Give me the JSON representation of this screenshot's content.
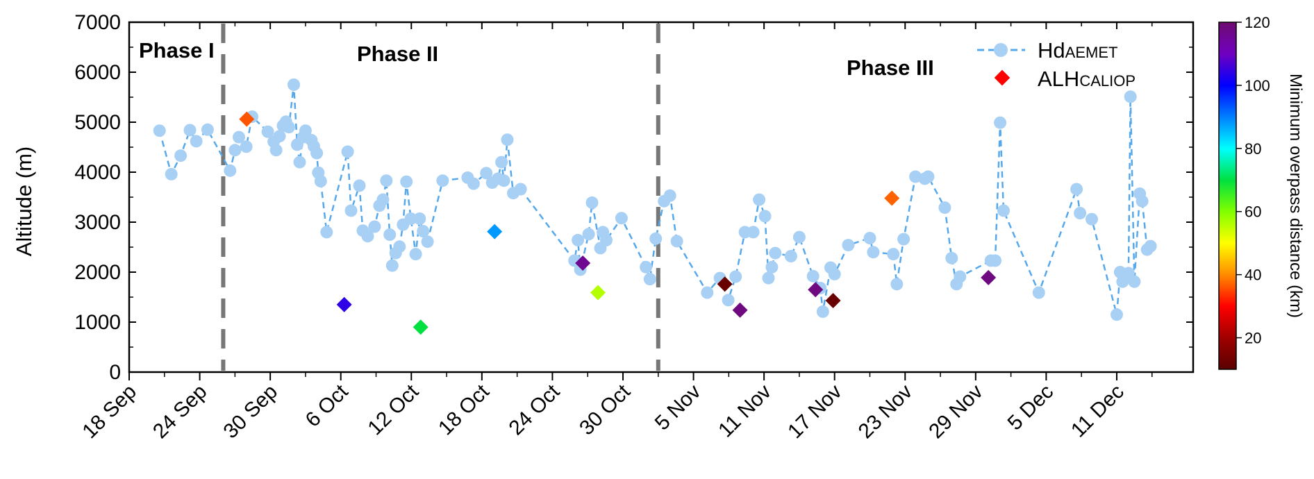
{
  "chart_data": {
    "type": "scatter",
    "ylabel": "Altitude (m)",
    "ylim": [
      0,
      7000
    ],
    "yticks": [
      0,
      1000,
      2000,
      3000,
      4000,
      5000,
      6000,
      7000
    ],
    "xlim_days_from_sep18": [
      0,
      90.5
    ],
    "xtick_labels": [
      "18 Sep",
      "24 Sep",
      "30 Sep",
      "6 Oct",
      "12 Oct",
      "18 Oct",
      "24 Oct",
      "30 Oct",
      "5 Nov",
      "11 Nov",
      "17 Nov",
      "23 Nov",
      "29 Nov",
      "5 Dec",
      "11 Dec"
    ],
    "phases": [
      {
        "label": "Phase I"
      },
      {
        "label": "Phase II"
      },
      {
        "label": "Phase III"
      }
    ],
    "phase_boundaries": [
      "2022-09-26",
      "2022-11-02"
    ],
    "colors": {
      "hd_series": "#a8d0f5",
      "hd_line": "#56a8ec",
      "boundary": "#777777"
    },
    "series": [
      {
        "name": "Hd",
        "name_sub": "AEMET",
        "marker": "circle",
        "points": [
          [
            "2022-09-20T14:00",
            4830
          ],
          [
            "2022-09-21T14:00",
            3960
          ],
          [
            "2022-09-22T09:00",
            4330
          ],
          [
            "2022-09-23T04:00",
            4840
          ],
          [
            "2022-09-23T17:00",
            4620
          ],
          [
            "2022-09-24T16:00",
            4850
          ],
          [
            "2022-09-26T14:00",
            4030
          ],
          [
            "2022-09-27T00:00",
            4440
          ],
          [
            "2022-09-27T08:00",
            4700
          ],
          [
            "2022-09-27T23:00",
            4510
          ],
          [
            "2022-09-28T11:00",
            5110
          ],
          [
            "2022-09-29T19:00",
            4810
          ],
          [
            "2022-09-30T07:00",
            4610
          ],
          [
            "2022-09-30T12:00",
            4440
          ],
          [
            "2022-09-30T19:00",
            4720
          ],
          [
            "2022-10-01T02:00",
            4930
          ],
          [
            "2022-10-01T08:00",
            5010
          ],
          [
            "2022-10-01T14:00",
            4900
          ],
          [
            "2022-10-02T00:00",
            5750
          ],
          [
            "2022-10-02T07:00",
            4550
          ],
          [
            "2022-10-02T12:00",
            4200
          ],
          [
            "2022-10-02T19:00",
            4700
          ],
          [
            "2022-10-03T00:00",
            4830
          ],
          [
            "2022-10-03T12:00",
            4640
          ],
          [
            "2022-10-03T17:00",
            4520
          ],
          [
            "2022-10-03T23:00",
            4380
          ],
          [
            "2022-10-04T02:00",
            3990
          ],
          [
            "2022-10-04T07:00",
            3820
          ],
          [
            "2022-10-04T19:00",
            2800
          ],
          [
            "2022-10-06T14:00",
            4410
          ],
          [
            "2022-10-06T21:00",
            3230
          ],
          [
            "2022-10-07T14:00",
            3730
          ],
          [
            "2022-10-07T21:00",
            2830
          ],
          [
            "2022-10-08T07:00",
            2720
          ],
          [
            "2022-10-08T21:00",
            2910
          ],
          [
            "2022-10-09T07:00",
            3330
          ],
          [
            "2022-10-09T14:00",
            3450
          ],
          [
            "2022-10-09T21:00",
            3830
          ],
          [
            "2022-10-10T04:00",
            2750
          ],
          [
            "2022-10-10T09:00",
            2130
          ],
          [
            "2022-10-10T16:00",
            2380
          ],
          [
            "2022-10-11T00:00",
            2510
          ],
          [
            "2022-10-11T07:00",
            2950
          ],
          [
            "2022-10-11T14:00",
            3810
          ],
          [
            "2022-10-11T23:00",
            3070
          ],
          [
            "2022-10-12T09:00",
            2360
          ],
          [
            "2022-10-12T17:00",
            3070
          ],
          [
            "2022-10-13T00:00",
            2820
          ],
          [
            "2022-10-13T09:00",
            2610
          ],
          [
            "2022-10-14T16:00",
            3830
          ],
          [
            "2022-10-16T19:00",
            3890
          ],
          [
            "2022-10-17T07:00",
            3770
          ],
          [
            "2022-10-18T09:00",
            3980
          ],
          [
            "2022-10-18T21:00",
            3790
          ],
          [
            "2022-10-19T09:00",
            3870
          ],
          [
            "2022-10-19T16:00",
            4200
          ],
          [
            "2022-10-19T21:00",
            3830
          ],
          [
            "2022-10-20T04:00",
            4650
          ],
          [
            "2022-10-20T16:00",
            3580
          ],
          [
            "2022-10-21T07:00",
            3660
          ],
          [
            "2022-10-25T21:00",
            2230
          ],
          [
            "2022-10-26T04:00",
            2640
          ],
          [
            "2022-10-26T09:00",
            2050
          ],
          [
            "2022-10-27T02:00",
            2760
          ],
          [
            "2022-10-27T09:00",
            3390
          ],
          [
            "2022-10-28T02:00",
            2480
          ],
          [
            "2022-10-28T07:00",
            2800
          ],
          [
            "2022-10-28T14:00",
            2640
          ],
          [
            "2022-10-29T21:00",
            3080
          ],
          [
            "2022-10-31T23:00",
            2100
          ],
          [
            "2022-11-01T07:00",
            1860
          ],
          [
            "2022-11-01T19:00",
            2670
          ],
          [
            "2022-11-02T12:00",
            3420
          ],
          [
            "2022-11-03T00:00",
            3530
          ],
          [
            "2022-11-03T14:00",
            2620
          ],
          [
            "2022-11-06T04:00",
            1590
          ],
          [
            "2022-11-07T06:00",
            1880
          ],
          [
            "2022-11-07T23:00",
            1440
          ],
          [
            "2022-11-08T14:00",
            1910
          ],
          [
            "2022-11-09T09:00",
            2800
          ],
          [
            "2022-11-10T02:00",
            2800
          ],
          [
            "2022-11-10T14:00",
            3450
          ],
          [
            "2022-11-11T02:00",
            3120
          ],
          [
            "2022-11-11T09:00",
            1880
          ],
          [
            "2022-11-11T16:00",
            2100
          ],
          [
            "2022-11-11T23:00",
            2380
          ],
          [
            "2022-11-13T07:00",
            2320
          ],
          [
            "2022-11-14T00:00",
            2700
          ],
          [
            "2022-11-15T04:00",
            1920
          ],
          [
            "2022-11-15T19:00",
            1680
          ],
          [
            "2022-11-16T00:00",
            1210
          ],
          [
            "2022-11-16T16:00",
            2090
          ],
          [
            "2022-11-17T00:00",
            1960
          ],
          [
            "2022-11-18T04:00",
            2540
          ],
          [
            "2022-11-20T00:00",
            2680
          ],
          [
            "2022-11-20T07:00",
            2400
          ],
          [
            "2022-11-22T00:00",
            2360
          ],
          [
            "2022-11-22T07:00",
            1760
          ],
          [
            "2022-11-22T21:00",
            2660
          ],
          [
            "2022-11-23T21:00",
            3910
          ],
          [
            "2022-11-24T16:00",
            3870
          ],
          [
            "2022-11-24T23:00",
            3910
          ],
          [
            "2022-11-26T09:00",
            3290
          ],
          [
            "2022-11-26T23:00",
            2280
          ],
          [
            "2022-11-27T09:00",
            1760
          ],
          [
            "2022-11-27T16:00",
            1910
          ],
          [
            "2022-11-30T07:00",
            2230
          ],
          [
            "2022-11-30T16:00",
            2230
          ],
          [
            "2022-12-01T02:00",
            4990
          ],
          [
            "2022-12-01T09:00",
            3230
          ],
          [
            "2022-12-04T09:00",
            1590
          ],
          [
            "2022-12-07T14:00",
            3660
          ],
          [
            "2022-12-07T21:00",
            3180
          ],
          [
            "2022-12-08T21:00",
            3060
          ],
          [
            "2022-12-11T00:00",
            1150
          ],
          [
            "2022-12-11T07:00",
            2000
          ],
          [
            "2022-12-11T12:00",
            1810
          ],
          [
            "2022-12-12T00:00",
            1980
          ],
          [
            "2022-12-12T04:00",
            5510
          ],
          [
            "2022-12-12T12:00",
            1810
          ],
          [
            "2022-12-12T23:00",
            3570
          ],
          [
            "2022-12-13T04:00",
            3420
          ],
          [
            "2022-12-13T14:00",
            2450
          ],
          [
            "2022-12-13T21:00",
            2520
          ]
        ]
      },
      {
        "name": "ALH",
        "name_sub": "CALIOP",
        "marker": "diamond",
        "color_variable": "Minimum overpass distance (km)",
        "points": [
          {
            "x": "2022-09-28T00:00",
            "y": 5060,
            "dist": 36
          },
          {
            "x": "2022-10-06T07:00",
            "y": 1350,
            "dist": 104
          },
          {
            "x": "2022-10-12T19:00",
            "y": 900,
            "dist": 70
          },
          {
            "x": "2022-10-19T02:00",
            "y": 2810,
            "dist": 88
          },
          {
            "x": "2022-10-26T14:00",
            "y": 2180,
            "dist": 116
          },
          {
            "x": "2022-10-27T21:00",
            "y": 1590,
            "dist": 56
          },
          {
            "x": "2022-11-07T16:00",
            "y": 1760,
            "dist": 12
          },
          {
            "x": "2022-11-08T23:00",
            "y": 1240,
            "dist": 118
          },
          {
            "x": "2022-11-15T09:00",
            "y": 1650,
            "dist": 118
          },
          {
            "x": "2022-11-16T21:00",
            "y": 1430,
            "dist": 12
          },
          {
            "x": "2022-11-21T21:00",
            "y": 3480,
            "dist": 37
          },
          {
            "x": "2022-11-30T02:00",
            "y": 1890,
            "dist": 118
          }
        ]
      }
    ],
    "colorbar": {
      "label": "Minimum overpass distance (km)",
      "range": [
        10,
        120
      ],
      "ticks": [
        20,
        40,
        60,
        80,
        100,
        120
      ],
      "stops": [
        "#5a0000",
        "#a00000",
        "#ff0000",
        "#ff8c00",
        "#ffff00",
        "#80ff00",
        "#00e040",
        "#00ffff",
        "#0080ff",
        "#0000ff",
        "#7000c0",
        "#6e0b70"
      ]
    },
    "legend_position": "top-right"
  }
}
